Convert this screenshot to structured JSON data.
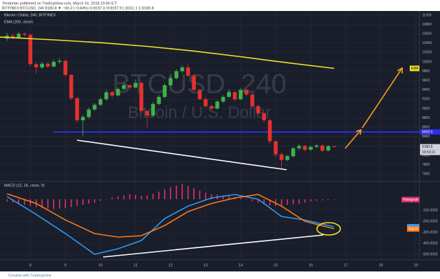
{
  "header": "Tendorlan published on TradingView.com, March 16, 2018 19:06 ICT",
  "footer": "Created with TradingView",
  "chart_data": [
    {
      "type": "candlestick",
      "symbol_line": "BITFINEX:BTCUSD, 240  8180.8 ▼ −69.3 (−0.84%) O:8197.0 H:8197.9 L:8161.1 C:8180.8",
      "title": "Bitcoin / Dollar, 240, BITFINEX",
      "indicator": "EMA (200, close)",
      "watermark": "BTCUSD, 240",
      "watermark_sub": "Bitcoin / U.S. Dollar",
      "xlim": [
        -1.2,
        70.6
      ],
      "xticks": [
        {
          "value": 4,
          "label": "8"
        },
        {
          "value": 10,
          "label": "9"
        },
        {
          "value": 16,
          "label": "10"
        },
        {
          "value": 22,
          "label": "11"
        },
        {
          "value": 28,
          "label": "12"
        },
        {
          "value": 34,
          "label": "13"
        },
        {
          "value": 40,
          "label": "14"
        },
        {
          "value": 46,
          "label": "15"
        },
        {
          "value": 52,
          "label": "16"
        },
        {
          "value": 58,
          "label": "17"
        },
        {
          "value": 64,
          "label": "18"
        },
        {
          "value": 70,
          "label": "19"
        }
      ],
      "ylim": [
        7470,
        11088
      ],
      "yticks": [
        7600,
        7800,
        8000,
        8200,
        8400,
        8600,
        8800,
        9000,
        9200,
        9400,
        9600,
        9800,
        10000,
        10200,
        10400,
        10600,
        10800,
        11000
      ],
      "up_color": "#3fb24a",
      "down_color": "#e5312f",
      "open": [
        10500,
        10560,
        10520,
        10600,
        10580,
        9950,
        9880,
        9960,
        9900,
        10000,
        10020,
        9720,
        9220,
        8750,
        8820,
        8980,
        9080,
        9200,
        9350,
        9280,
        9420,
        9500,
        9450,
        9550,
        8950,
        8850,
        9100,
        9250,
        9500,
        9650,
        9800,
        9880,
        9700,
        9400,
        9200,
        9050,
        9000,
        9150,
        9250,
        9350,
        9200,
        9400,
        9300,
        9050,
        8900,
        8750,
        8300,
        8020,
        7900,
        7980,
        8150,
        8200,
        8120,
        8180,
        8210,
        8100,
        8197.0
      ],
      "high": [
        10620,
        10600,
        10650,
        10640,
        10600,
        9990,
        10000,
        9990,
        10050,
        10080,
        10040,
        9740,
        9250,
        8860,
        9020,
        9120,
        9250,
        9400,
        9380,
        9460,
        9560,
        9520,
        9620,
        9580,
        8960,
        9140,
        9290,
        9540,
        9700,
        9840,
        9930,
        9950,
        9720,
        9430,
        9240,
        9080,
        9180,
        9290,
        9400,
        9380,
        9450,
        9420,
        9320,
        9080,
        8920,
        8780,
        8320,
        8060,
        8010,
        8180,
        8240,
        8220,
        8210,
        8240,
        8230,
        8220,
        8197.9
      ],
      "low": [
        10450,
        10480,
        10500,
        10540,
        9900,
        9750,
        9850,
        9860,
        9880,
        9960,
        9680,
        9180,
        8700,
        8420,
        8780,
        8950,
        9050,
        9170,
        9240,
        9260,
        9400,
        9420,
        9430,
        8900,
        8600,
        8820,
        9060,
        9220,
        9470,
        9620,
        9760,
        9680,
        9380,
        9180,
        9020,
        8960,
        8980,
        9120,
        9230,
        9150,
        9180,
        9260,
        9020,
        8870,
        8700,
        8250,
        7960,
        7700,
        7870,
        7950,
        8100,
        8080,
        8090,
        8160,
        8070,
        8090,
        8161.1
      ],
      "close": [
        10560,
        10520,
        10600,
        10580,
        9950,
        9880,
        9960,
        9900,
        10000,
        10020,
        9720,
        9220,
        8750,
        8820,
        8980,
        9080,
        9200,
        9350,
        9280,
        9420,
        9500,
        9450,
        9550,
        8950,
        8850,
        9100,
        9250,
        9500,
        9650,
        9800,
        9880,
        9700,
        9400,
        9200,
        9050,
        9000,
        9150,
        9250,
        9350,
        9200,
        9400,
        9300,
        9050,
        8900,
        8750,
        8300,
        8020,
        7900,
        7980,
        8150,
        8200,
        8120,
        8180,
        8210,
        8100,
        8197,
        8180.8
      ],
      "series": [
        {
          "name": "EMA",
          "color": "#f2e52a",
          "x": [
            -1.2,
            8,
            16,
            24,
            32,
            40,
            48,
            56
          ],
          "values": [
            10530,
            10470,
            10410,
            10330,
            10230,
            10110,
            9980,
            9860
          ]
        }
      ],
      "hline": {
        "value": 8500,
        "label": "8500.0",
        "color": "#2b2fe0"
      },
      "last_price": 8180.8,
      "countdown": "03:53:21"
    },
    {
      "type": "macd",
      "title": "MACD (12, 26, close, 9)",
      "xlim": [
        -1.2,
        70.6
      ],
      "ylim": [
        -550,
        150
      ],
      "yticks": [
        {
          "value": -100,
          "label": "-100.0000"
        },
        {
          "value": -200,
          "label": "-200.0000"
        },
        {
          "value": -300,
          "label": "-300.0000"
        },
        {
          "value": -400,
          "label": "-400.0000"
        },
        {
          "value": -500,
          "label": "-500.0000"
        }
      ],
      "histogram": {
        "name": "Histogram",
        "color": "#e0336e",
        "values": [
          -20,
          -30,
          -40,
          -50,
          -60,
          -70,
          -80,
          -85,
          -90,
          -85,
          -80,
          -70,
          -60,
          -50,
          -40,
          -30,
          -15,
          0,
          15,
          25,
          35,
          45,
          40,
          30,
          35,
          50,
          70,
          90,
          110,
          125,
          140,
          120,
          100,
          80,
          60,
          45,
          40,
          35,
          30,
          20,
          10,
          0,
          -15,
          -30,
          -45,
          -55,
          -60,
          -55,
          -50,
          -45,
          -40,
          -30,
          -20,
          -15,
          -10,
          -5,
          -3
        ]
      },
      "series": [
        {
          "color": "#2e9bf0",
          "x": [
            0,
            5,
            10,
            15,
            19,
            23,
            27,
            31,
            35,
            39,
            43,
            47,
            51,
            56
          ],
          "values": [
            25,
            -138,
            -312,
            -500,
            -450,
            -375,
            -175,
            -62,
            12,
            44,
            0,
            -156,
            -188,
            -250
          ]
        },
        {
          "name": "Signal",
          "color": "#ff7a1a",
          "x": [
            0,
            5,
            10,
            15,
            19,
            23,
            27,
            31,
            35,
            39,
            43,
            47,
            51,
            56
          ],
          "values": [
            50,
            -38,
            -188,
            -312,
            -344,
            -331,
            -238,
            -112,
            -38,
            12,
            44,
            -62,
            -200,
            -269
          ]
        }
      ]
    }
  ]
}
